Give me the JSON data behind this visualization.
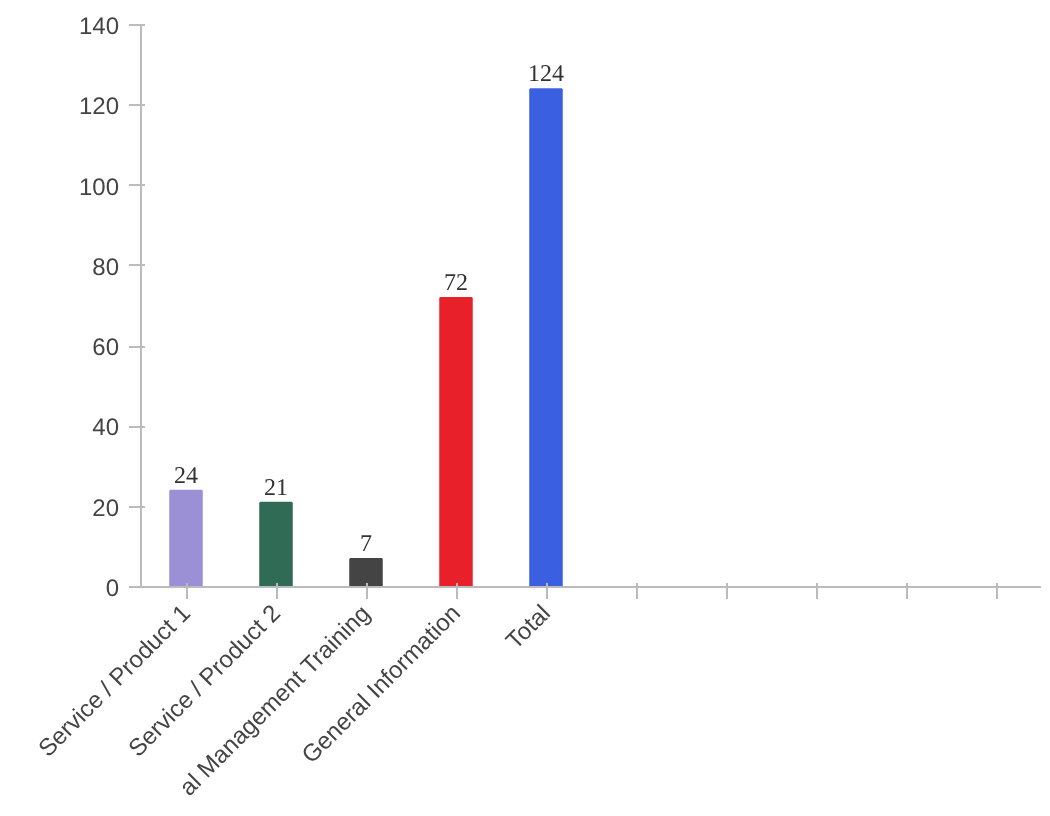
{
  "chart_data": {
    "type": "bar",
    "categories": [
      "Service / Product 1",
      "Service / Product 2",
      "al Management Training",
      "General Information",
      "Total",
      null,
      null,
      null,
      null,
      null
    ],
    "values": [
      24,
      21,
      7,
      72,
      124,
      null,
      null,
      null,
      null,
      null
    ],
    "colors": [
      "#9b8fd6",
      "#2f6b55",
      "#444444",
      "#e8202a",
      "#3a5fe0",
      "#cccccc",
      "#cccccc",
      "#cccccc",
      "#cccccc",
      "#cccccc"
    ],
    "ylim": [
      0,
      140
    ],
    "yticks": [
      0,
      20,
      40,
      60,
      80,
      100,
      120,
      140
    ],
    "grid": false,
    "data_labels": true
  }
}
